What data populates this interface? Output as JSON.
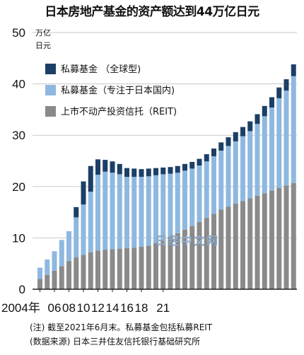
{
  "title": "日本房地产基金的资产额达到44万亿日元",
  "unit_line1": "万亿",
  "unit_line2": "日元",
  "note": "(注) 截至2021年6月末。私募基金包括私募REIT",
  "source": "(数据来源) 日本三井住友信托银行基础研究所",
  "watermark": "日经中文网",
  "colors": {
    "global": "#1c3f66",
    "domestic": "#8eb8e0",
    "reit": "#8a8a8a",
    "grid": "#c8c8c8"
  },
  "chart_data": {
    "type": "bar",
    "stacked": true,
    "title": "日本房地产基金的资产额达到44万亿日元",
    "ylabel": "万亿 日元",
    "ylim": [
      0,
      50
    ],
    "yticks": [
      0,
      10,
      20,
      30,
      40,
      50
    ],
    "xtick_labels": [
      "2004年",
      "06",
      "08",
      "10",
      "12",
      "14",
      "16",
      "18",
      "21"
    ],
    "legend_position": "top-left",
    "grid": true,
    "series": [
      {
        "name": "上市不动产投资信托（REIT)",
        "values": [
          2.0,
          2.8,
          3.6,
          4.5,
          5.5,
          6.2,
          6.7,
          7.2,
          7.5,
          7.7,
          7.8,
          7.9,
          8.0,
          8.1,
          8.3,
          8.5,
          9.0,
          9.6,
          10.2,
          10.9,
          11.6,
          12.3,
          13.1,
          13.9,
          14.7,
          15.5,
          16.1,
          16.7,
          17.2,
          17.7,
          18.2,
          18.7,
          19.2,
          19.7,
          20.2,
          20.7
        ]
      },
      {
        "name": "私募基金（专注于日本国内)",
        "values": [
          2.2,
          3.0,
          3.8,
          5.1,
          5.8,
          7.8,
          9.8,
          11.8,
          14.8,
          15.2,
          14.9,
          14.5,
          13.9,
          13.8,
          13.6,
          13.5,
          13.2,
          12.8,
          12.3,
          11.8,
          11.5,
          11.2,
          11.0,
          11.0,
          11.2,
          11.5,
          11.8,
          12.1,
          12.6,
          13.1,
          14.0,
          15.0,
          16.2,
          17.5,
          18.5,
          20.8
        ]
      },
      {
        "name": "私募基金 （全球型)",
        "values": [
          0.0,
          0.0,
          0.0,
          0.0,
          0.0,
          2.0,
          4.5,
          5.0,
          3.0,
          2.3,
          2.2,
          2.0,
          1.7,
          1.6,
          1.5,
          1.5,
          1.4,
          1.3,
          1.3,
          1.3,
          1.3,
          1.3,
          1.3,
          1.4,
          1.5,
          1.6,
          1.7,
          1.8,
          1.8,
          1.9,
          1.9,
          2.0,
          2.0,
          2.1,
          2.2,
          2.3
        ]
      }
    ]
  }
}
